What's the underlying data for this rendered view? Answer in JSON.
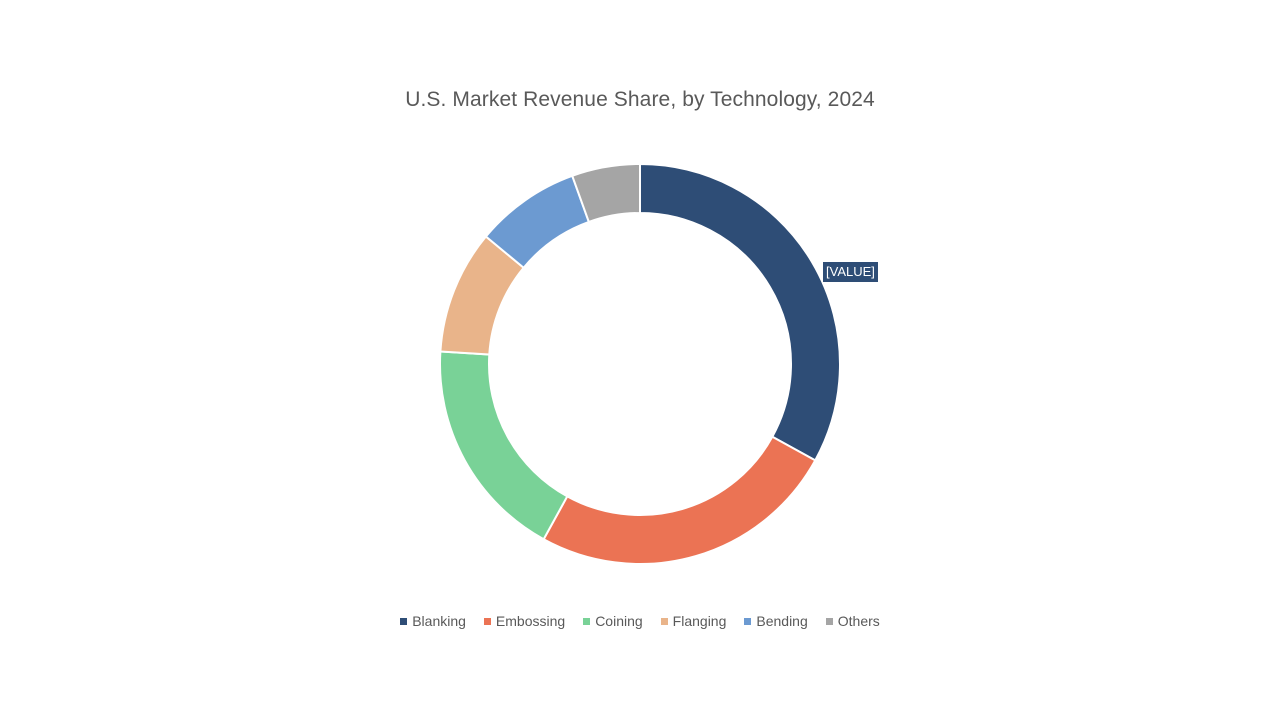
{
  "chart_data": {
    "type": "pie",
    "variant": "donut",
    "title": "U.S. Market Revenue Share, by Technology, 2024",
    "categories": [
      "Blanking",
      "Embossing",
      "Coining",
      "Flanging",
      "Bending",
      "Others"
    ],
    "values": [
      33,
      25,
      18,
      10,
      8.5,
      5.5
    ],
    "unit": "%",
    "colors": [
      "#2E4D76",
      "#EB7354",
      "#79D297",
      "#E9B48A",
      "#6C9AD1",
      "#A5A5A5"
    ],
    "data_labels": [
      "[VALUE]"
    ],
    "legend": "bottom"
  }
}
